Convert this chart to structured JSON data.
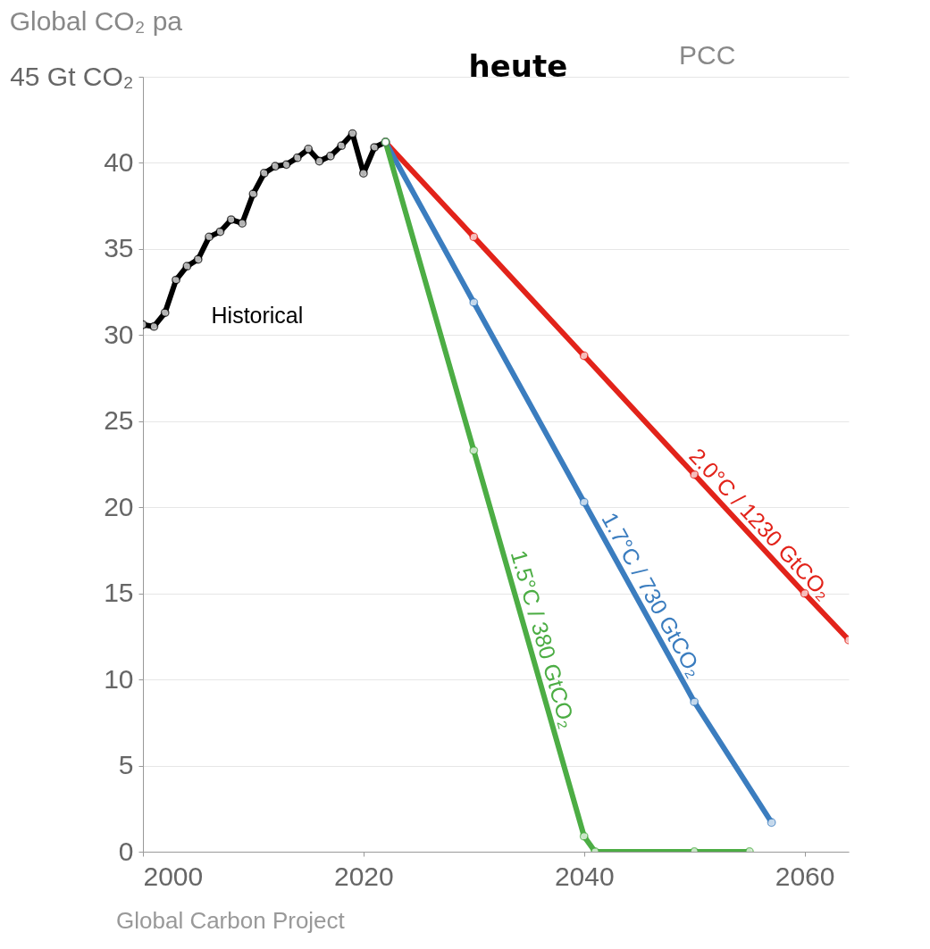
{
  "chart_data": {
    "type": "line",
    "title": "Global CO₂ pa",
    "annotations": [
      "heute",
      "PCC",
      "Global Carbon Project"
    ],
    "xlim": [
      2000,
      2064
    ],
    "xticks": [
      2000,
      2020,
      2040,
      2060
    ],
    "ylim": [
      0,
      45
    ],
    "yticks": [
      0,
      5,
      10,
      15,
      20,
      25,
      30,
      35,
      40,
      {
        "value": 45,
        "label": "45 Gt CO₂"
      }
    ],
    "grid": "y",
    "legend": false,
    "marker": "circle",
    "line_style": "solid",
    "series": [
      {
        "name": "Historical",
        "color": "#000000",
        "x": [
          2000,
          2001,
          2002,
          2003,
          2004,
          2005,
          2006,
          2007,
          2008,
          2009,
          2010,
          2011,
          2012,
          2013,
          2014,
          2015,
          2016,
          2017,
          2018,
          2019,
          2020,
          2021,
          2022
        ],
        "values": [
          30.6,
          30.5,
          31.3,
          33.2,
          34.0,
          34.4,
          35.7,
          36.0,
          36.7,
          36.5,
          38.2,
          39.4,
          39.8,
          39.9,
          40.3,
          40.8,
          40.1,
          40.4,
          41.0,
          41.7,
          39.4,
          40.9,
          41.2
        ]
      },
      {
        "name": "2.0°C / 1230 GtCO₂",
        "color": "#e2231a",
        "x": [
          2022,
          2030,
          2040,
          2050,
          2060,
          2064
        ],
        "values": [
          41.2,
          35.7,
          28.8,
          21.9,
          15.0,
          12.3
        ]
      },
      {
        "name": "1.7°C / 730 GtCO₂",
        "color": "#3b7dbf",
        "x": [
          2022,
          2030,
          2040,
          2050,
          2057
        ],
        "values": [
          41.2,
          31.9,
          20.3,
          8.7,
          1.7
        ]
      },
      {
        "name": "1.5°C / 380 GtCO₂",
        "color": "#4cad44",
        "x": [
          2022,
          2030,
          2040,
          2041,
          2050,
          2055
        ],
        "values": [
          41.2,
          23.3,
          0.9,
          0,
          0,
          0
        ]
      }
    ]
  }
}
